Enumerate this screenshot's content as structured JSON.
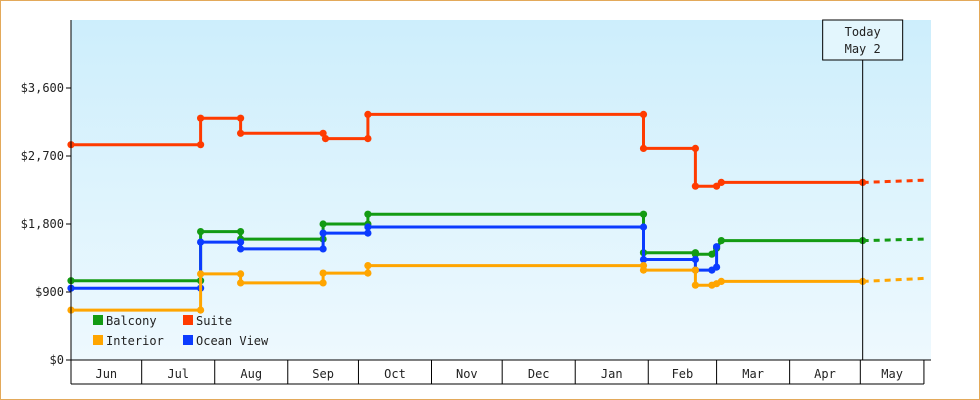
{
  "chart_data": {
    "type": "line",
    "x_type": "date",
    "x_range": [
      "2023-06-01",
      "2024-05-31"
    ],
    "ylim": [
      0,
      4500
    ],
    "y_ticks": [
      {
        "value": 0,
        "label": "$0"
      },
      {
        "value": 900,
        "label": "$900"
      },
      {
        "value": 1800,
        "label": "$1,800"
      },
      {
        "value": 2700,
        "label": "$2,700"
      },
      {
        "value": 3600,
        "label": "$3,600"
      }
    ],
    "months": [
      {
        "label": "Jun",
        "start": "2023-06-01"
      },
      {
        "label": "Jul",
        "start": "2023-07-01"
      },
      {
        "label": "Aug",
        "start": "2023-08-01"
      },
      {
        "label": "Sep",
        "start": "2023-09-01"
      },
      {
        "label": "Oct",
        "start": "2023-10-01"
      },
      {
        "label": "Nov",
        "start": "2023-11-01"
      },
      {
        "label": "Dec",
        "start": "2023-12-01"
      },
      {
        "label": "Jan",
        "start": "2024-01-01"
      },
      {
        "label": "Feb",
        "start": "2024-02-01"
      },
      {
        "label": "Mar",
        "start": "2024-03-01"
      },
      {
        "label": "Apr",
        "start": "2024-04-01"
      },
      {
        "label": "May",
        "start": "2024-05-01"
      }
    ],
    "x_axis_start": "2023-06-01",
    "x_axis_end": "2024-05-28",
    "today": {
      "date": "2024-05-02",
      "label_line1": "Today",
      "label_line2": "May 2"
    },
    "projection_end": "2024-05-28",
    "grid": false,
    "legend_position": "bottom-left",
    "colors": {
      "bg_top": "#cdeefc",
      "bg_bottom": "#eef9fe",
      "axis": "#000000",
      "frame": "#e3a95a"
    },
    "series": [
      {
        "name": "Suite",
        "color": "#ff3b00",
        "points": [
          [
            "2023-06-01",
            2850
          ],
          [
            "2023-07-26",
            2850
          ],
          [
            "2023-07-26",
            3200
          ],
          [
            "2023-08-12",
            3200
          ],
          [
            "2023-08-12",
            3000
          ],
          [
            "2023-09-16",
            3000
          ],
          [
            "2023-09-17",
            2930
          ],
          [
            "2023-10-05",
            2930
          ],
          [
            "2023-10-05",
            3250
          ],
          [
            "2024-01-30",
            3250
          ],
          [
            "2024-01-30",
            2800
          ],
          [
            "2024-02-21",
            2800
          ],
          [
            "2024-02-21",
            2300
          ],
          [
            "2024-03-01",
            2300
          ],
          [
            "2024-03-03",
            2350
          ],
          [
            "2024-05-02",
            2350
          ]
        ],
        "projection": 2380
      },
      {
        "name": "Balcony",
        "color": "#139b13",
        "points": [
          [
            "2023-06-01",
            1050
          ],
          [
            "2023-07-26",
            1050
          ],
          [
            "2023-07-26",
            1700
          ],
          [
            "2023-08-12",
            1700
          ],
          [
            "2023-08-12",
            1600
          ],
          [
            "2023-09-16",
            1600
          ],
          [
            "2023-09-16",
            1800
          ],
          [
            "2023-10-05",
            1800
          ],
          [
            "2023-10-05",
            1930
          ],
          [
            "2024-01-30",
            1930
          ],
          [
            "2024-01-30",
            1420
          ],
          [
            "2024-02-21",
            1420
          ],
          [
            "2024-02-21",
            1400
          ],
          [
            "2024-02-28",
            1400
          ],
          [
            "2024-03-01",
            1480
          ],
          [
            "2024-03-03",
            1580
          ],
          [
            "2024-05-02",
            1580
          ]
        ],
        "projection": 1600
      },
      {
        "name": "Ocean View",
        "color": "#0b3bff",
        "points": [
          [
            "2023-06-01",
            950
          ],
          [
            "2023-07-26",
            950
          ],
          [
            "2023-07-26",
            1560
          ],
          [
            "2023-08-12",
            1560
          ],
          [
            "2023-08-12",
            1470
          ],
          [
            "2023-09-16",
            1470
          ],
          [
            "2023-09-16",
            1680
          ],
          [
            "2023-10-05",
            1680
          ],
          [
            "2023-10-05",
            1760
          ],
          [
            "2024-01-30",
            1760
          ],
          [
            "2024-01-30",
            1330
          ],
          [
            "2024-02-21",
            1330
          ],
          [
            "2024-02-21",
            1190
          ],
          [
            "2024-02-28",
            1190
          ],
          [
            "2024-03-01",
            1230
          ],
          [
            "2024-03-01",
            1500
          ]
        ]
      },
      {
        "name": "Interior",
        "color": "#ffa500",
        "points": [
          [
            "2023-06-01",
            660
          ],
          [
            "2023-07-26",
            660
          ],
          [
            "2023-07-26",
            1140
          ],
          [
            "2023-08-12",
            1140
          ],
          [
            "2023-08-12",
            1020
          ],
          [
            "2023-09-16",
            1020
          ],
          [
            "2023-09-16",
            1150
          ],
          [
            "2023-10-05",
            1150
          ],
          [
            "2023-10-05",
            1250
          ],
          [
            "2024-01-30",
            1250
          ],
          [
            "2024-01-30",
            1190
          ],
          [
            "2024-02-21",
            1190
          ],
          [
            "2024-02-21",
            990
          ],
          [
            "2024-02-28",
            990
          ],
          [
            "2024-03-01",
            1010
          ],
          [
            "2024-03-03",
            1040
          ],
          [
            "2024-05-02",
            1040
          ]
        ],
        "projection": 1080
      }
    ],
    "legend": [
      {
        "name": "Balcony",
        "color": "#139b13"
      },
      {
        "name": "Suite",
        "color": "#ff3b00"
      },
      {
        "name": "Interior",
        "color": "#ffa500"
      },
      {
        "name": "Ocean View",
        "color": "#0b3bff"
      }
    ]
  }
}
